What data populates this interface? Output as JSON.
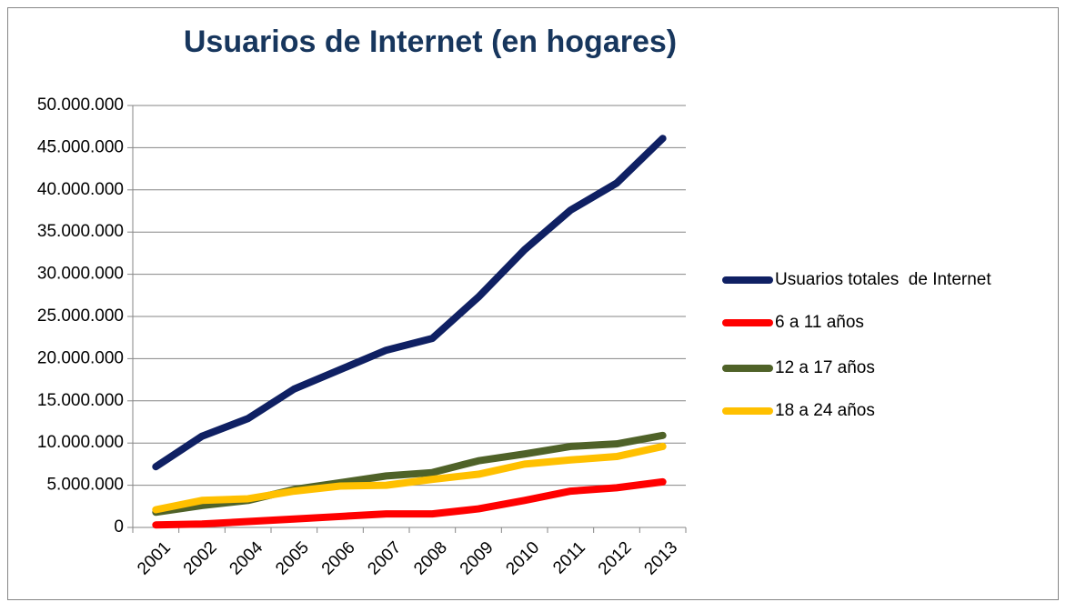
{
  "chart_data": {
    "type": "line",
    "title": "Usuarios de Internet (en hogares)",
    "categories": [
      "2001",
      "2002",
      "2004",
      "2005",
      "2006",
      "2007",
      "2008",
      "2009",
      "2010",
      "2011",
      "2012",
      "2013"
    ],
    "series": [
      {
        "name": "Usuarios totales  de Internet",
        "color": "#0f2063",
        "values": [
          7200000,
          10800000,
          12900000,
          16400000,
          18700000,
          21000000,
          22400000,
          27300000,
          32900000,
          37600000,
          40800000,
          46100000
        ]
      },
      {
        "name": "6 a 11 años",
        "color": "#ff0000",
        "values": [
          300000,
          400000,
          700000,
          1000000,
          1300000,
          1600000,
          1600000,
          2200000,
          3200000,
          4300000,
          4700000,
          5400000
        ]
      },
      {
        "name": "12 a 17 años",
        "color": "#4f6228",
        "values": [
          1800000,
          2600000,
          3200000,
          4500000,
          5300000,
          6100000,
          6500000,
          7900000,
          8700000,
          9600000,
          9900000,
          10900000
        ]
      },
      {
        "name": "18 a 24 años",
        "color": "#ffc000",
        "values": [
          2100000,
          3200000,
          3400000,
          4300000,
          4900000,
          5000000,
          5700000,
          6300000,
          7500000,
          8000000,
          8400000,
          9600000
        ]
      }
    ],
    "ylim": [
      0,
      50000000
    ],
    "yticks": [
      0,
      {
        "value": 5000000,
        "label": "5.000.000"
      },
      {
        "value": 10000000,
        "label": "10.000.000"
      },
      {
        "value": 15000000,
        "label": "15.000.000"
      },
      {
        "value": 20000000,
        "label": "20.000.000"
      },
      {
        "value": 25000000,
        "label": "25.000.000"
      },
      {
        "value": 30000000,
        "label": "30.000.000"
      },
      {
        "value": 35000000,
        "label": "35.000.000"
      },
      {
        "value": 40000000,
        "label": "40.000.000"
      },
      {
        "value": 45000000,
        "label": "45.000.000"
      },
      {
        "value": 50000000,
        "label": "50.000.000"
      }
    ],
    "grid": true,
    "legend": "right"
  }
}
